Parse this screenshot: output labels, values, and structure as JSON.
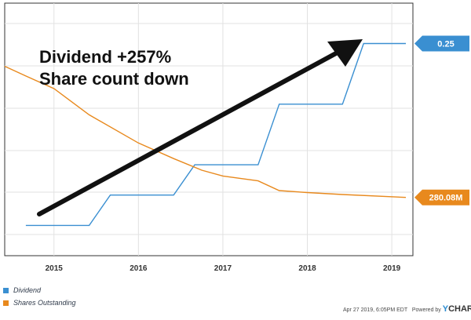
{
  "chart_data": {
    "type": "line",
    "x_ticks": [
      "2015",
      "2016",
      "2017",
      "2018",
      "2019"
    ],
    "xlim": [
      "2014-06",
      "2019-04"
    ],
    "series": [
      {
        "name": "Dividend",
        "axis": "right",
        "color": "#3a8fd1",
        "ylim": [
          0.04,
          0.29
        ],
        "last_value_label": "0.25",
        "points": [
          [
            "2014-09",
            0.07
          ],
          [
            "2015-06",
            0.07
          ],
          [
            "2015-09",
            0.1
          ],
          [
            "2016-06",
            0.1
          ],
          [
            "2016-09",
            0.13
          ],
          [
            "2017-06",
            0.13
          ],
          [
            "2017-09",
            0.19
          ],
          [
            "2018-06",
            0.19
          ],
          [
            "2018-09",
            0.25
          ],
          [
            "2019-03",
            0.25
          ]
        ]
      },
      {
        "name": "Shares Outstanding",
        "axis": "left",
        "color": "#e8891d",
        "ylim": [
          220,
          480
        ],
        "unit": "M",
        "last_value_label": "280.08M",
        "points": [
          [
            "2014-06",
            415
          ],
          [
            "2014-09",
            405
          ],
          [
            "2015-01",
            392
          ],
          [
            "2015-06",
            365
          ],
          [
            "2016-01",
            336
          ],
          [
            "2016-06",
            320
          ],
          [
            "2016-10",
            308
          ],
          [
            "2017-01",
            302
          ],
          [
            "2017-06",
            297
          ],
          [
            "2017-09",
            287
          ],
          [
            "2018-01",
            285
          ],
          [
            "2018-06",
            283
          ],
          [
            "2019-03",
            280
          ]
        ]
      }
    ],
    "annotations": [
      "Dividend +257%",
      "Share count down"
    ],
    "grid": true,
    "legend": "bottom-left"
  },
  "footer": {
    "timestamp": "Apr 27 2019, 6:05PM EDT",
    "powered_by": "Powered by",
    "brand_prefix": "Y",
    "brand_suffix": "CHARTS"
  }
}
